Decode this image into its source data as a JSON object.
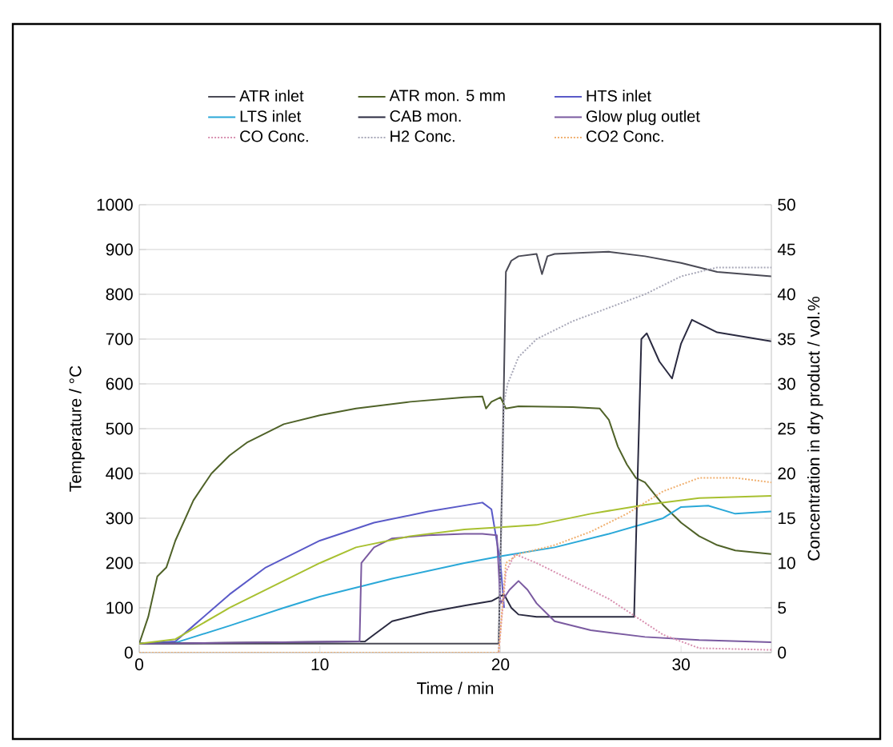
{
  "chart_data": {
    "type": "line",
    "xlabel": "Time / min",
    "ylabel": "Temperature / °C",
    "y2label": "Concentration in dry product / vol.%",
    "xlim": [
      0,
      35
    ],
    "xticks": [
      0,
      10,
      20,
      30
    ],
    "ylim": [
      0,
      1000
    ],
    "yticks": [
      0,
      100,
      200,
      300,
      400,
      500,
      600,
      700,
      800,
      900,
      1000
    ],
    "y2lim": [
      0,
      50
    ],
    "y2ticks": [
      0,
      5,
      10,
      15,
      20,
      25,
      30,
      35,
      40,
      45,
      50
    ],
    "grid": "y",
    "legend": "top",
    "marker": "none",
    "line_style": "solid",
    "series": [
      {
        "name": "ATR inlet",
        "color": "#4a4a55",
        "x": [
          0,
          19.9,
          20.1,
          20.3,
          20.6,
          21,
          22,
          22.3,
          22.6,
          23,
          24,
          26,
          28,
          30,
          32,
          35
        ],
        "values": [
          20,
          20,
          400,
          850,
          875,
          885,
          890,
          845,
          885,
          890,
          892,
          895,
          885,
          870,
          850,
          840
        ]
      },
      {
        "name": "ATR mon. 5 mm",
        "color": "#4f6228",
        "x": [
          0,
          0.5,
          1,
          1.5,
          2,
          3,
          4,
          5,
          6,
          8,
          10,
          12,
          15,
          18,
          19,
          19.2,
          19.5,
          20,
          20.3,
          21,
          24,
          25.5,
          26,
          26.5,
          27,
          27.5,
          28,
          29,
          30,
          31,
          32,
          33,
          35
        ],
        "values": [
          20,
          80,
          170,
          190,
          250,
          340,
          400,
          440,
          470,
          510,
          530,
          545,
          560,
          570,
          572,
          545,
          560,
          570,
          545,
          550,
          548,
          545,
          520,
          460,
          420,
          390,
          380,
          330,
          290,
          260,
          240,
          228,
          220
        ]
      },
      {
        "name": "HTS inlet",
        "color": "#5a5ac8",
        "x": [
          0,
          2,
          3,
          5,
          7,
          10,
          13,
          16,
          19,
          19.5,
          20,
          20.2
        ],
        "values": [
          20,
          25,
          60,
          130,
          190,
          250,
          290,
          315,
          335,
          320,
          200,
          100
        ]
      },
      {
        "name": "LTS inlet",
        "color": "#2aa8d8",
        "x": [
          0,
          2,
          5,
          8,
          10,
          14,
          18,
          20,
          23,
          26,
          29,
          30,
          31.5,
          33,
          35
        ],
        "values": [
          20,
          22,
          60,
          100,
          125,
          165,
          200,
          215,
          235,
          265,
          300,
          325,
          328,
          310,
          315
        ]
      },
      {
        "name": "CAB mon.",
        "color": "#2a2a40",
        "x": [
          0,
          12.5,
          13,
          14,
          16,
          18,
          19.5,
          20.2,
          20.6,
          21,
          22,
          27.4,
          27.6,
          27.8,
          28.1,
          28.8,
          29.5,
          30,
          30.6,
          32,
          35
        ],
        "values": [
          20,
          25,
          40,
          70,
          90,
          105,
          115,
          130,
          100,
          85,
          80,
          80,
          400,
          700,
          713,
          650,
          612,
          690,
          743,
          715,
          695
        ]
      },
      {
        "name": "Glow plug outlet",
        "color": "#7a5aa0",
        "x": [
          0,
          12.2,
          12.3,
          13,
          14,
          16,
          18,
          19,
          19.8,
          20,
          20.5,
          21,
          21.5,
          22,
          23,
          25,
          28,
          31,
          35
        ],
        "values": [
          20,
          25,
          200,
          235,
          255,
          262,
          265,
          265,
          262,
          110,
          140,
          160,
          140,
          110,
          70,
          50,
          35,
          28,
          23
        ]
      },
      {
        "name": "CO Conc.",
        "color": "#d890b0",
        "axis": "y2",
        "line_style": "dotted",
        "x": [
          19.9,
          20.3,
          20.8,
          22,
          24,
          26,
          27.5,
          29,
          31,
          35
        ],
        "values": [
          0,
          9,
          11,
          10,
          8,
          6,
          4,
          2,
          0.5,
          0.3
        ]
      },
      {
        "name": "H2 Conc.",
        "color": "#a8a8b8",
        "axis": "y2",
        "line_style": "dotted",
        "x": [
          0,
          19.9,
          20.2,
          20.4,
          21,
          22,
          24,
          26,
          28,
          30,
          32,
          35
        ],
        "values": [
          0,
          0,
          28,
          30,
          33,
          35,
          37,
          38.5,
          40,
          42,
          43,
          43
        ]
      },
      {
        "name": "CO2 Conc.",
        "color": "#f0b070",
        "axis": "y2",
        "line_style": "dotted",
        "x": [
          0,
          19.9,
          20.3,
          21,
          23,
          25,
          27,
          29,
          31,
          33,
          35
        ],
        "values": [
          0,
          0,
          10,
          11,
          12,
          13.5,
          15.5,
          18,
          19.5,
          19.5,
          19
        ]
      },
      {
        "color": "#a8c030",
        "x": [
          0,
          2,
          5,
          10,
          12,
          15,
          18,
          20,
          22,
          25,
          28,
          31,
          35
        ],
        "values": [
          20,
          30,
          100,
          200,
          235,
          260,
          275,
          280,
          285,
          310,
          330,
          345,
          350
        ]
      }
    ]
  }
}
